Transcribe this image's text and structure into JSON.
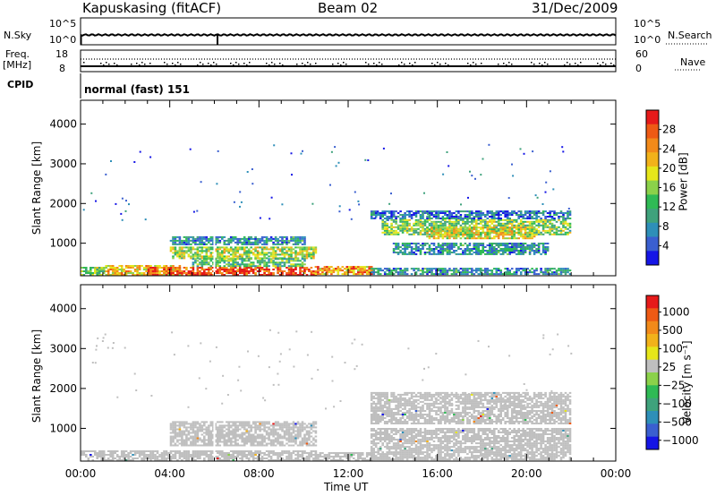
{
  "header": {
    "station": "Kapuskasing (fitACF)",
    "beam": "Beam 02",
    "date": "31/Dec/2009"
  },
  "top_panels": {
    "nsky_label": "N.Sky",
    "nsky_ticks": [
      "10^5",
      "10^0"
    ],
    "nsearch_label": "N.Search",
    "nsearch_ticks": [
      "10^5",
      "10^0"
    ],
    "freq_label": "Freq.",
    "freq_unit": "[MHz]",
    "freq_ticks": [
      "18",
      "8"
    ],
    "nave_label": "Nave",
    "nave_ticks": [
      "60",
      "0"
    ],
    "cpid_label": "CPID",
    "cpid_value": "normal (fast) 151"
  },
  "colors": {
    "power": [
      "#1515e6",
      "#3a5fd0",
      "#2e8fb8",
      "#3fa27c",
      "#2fba55",
      "#8bd14a",
      "#e6e61a",
      "#f2b21a",
      "#f28a1a",
      "#ee5a14",
      "#e61a1a"
    ],
    "velocity": [
      "#1515e6",
      "#3a5fd0",
      "#2e8fb8",
      "#3fa27c",
      "#2fba55",
      "#8bd14a",
      "#bfbfbf",
      "#e6e61a",
      "#f2b21a",
      "#f28a1a",
      "#ee5a14",
      "#e61a1a"
    ]
  },
  "chart_data": [
    {
      "type": "heatmap",
      "name": "power",
      "ylabel": "Slant Range [km]",
      "yticks": [
        "1000",
        "2000",
        "3000",
        "4000"
      ],
      "ylim": [
        180,
        4600
      ],
      "xlim": [
        0,
        24
      ],
      "colorbar_label": "Power [dB]",
      "colorbar_ticks": [
        "4",
        "8",
        "12",
        "16",
        "20",
        "24",
        "28"
      ],
      "regions": [
        {
          "t0": 0.0,
          "t1": 1.0,
          "r0": 180,
          "r1": 400,
          "val": 14
        },
        {
          "t0": 1.0,
          "t1": 4.5,
          "r0": 180,
          "r1": 450,
          "val": 20
        },
        {
          "t0": 3.0,
          "t1": 10.5,
          "r0": 180,
          "r1": 380,
          "val": 27
        },
        {
          "t0": 4.0,
          "t1": 10.5,
          "r0": 600,
          "r1": 900,
          "val": 16
        },
        {
          "t0": 4.0,
          "t1": 10.0,
          "r0": 950,
          "r1": 1150,
          "val": 8
        },
        {
          "t0": 5.0,
          "t1": 10.0,
          "r0": 400,
          "r1": 600,
          "val": 12
        },
        {
          "t0": 10.5,
          "t1": 13.0,
          "r0": 200,
          "r1": 400,
          "val": 22
        },
        {
          "t0": 13.0,
          "t1": 22.0,
          "r0": 200,
          "r1": 350,
          "val": 8
        },
        {
          "t0": 13.5,
          "t1": 22.0,
          "r0": 1200,
          "r1": 1600,
          "val": 14
        },
        {
          "t0": 13.0,
          "t1": 22.0,
          "r0": 1600,
          "r1": 1800,
          "val": 6
        },
        {
          "t0": 14.0,
          "t1": 21.0,
          "r0": 700,
          "r1": 1000,
          "val": 8
        },
        {
          "t0": 15.5,
          "t1": 20.5,
          "r0": 1100,
          "r1": 1400,
          "val": 18
        }
      ]
    },
    {
      "type": "heatmap",
      "name": "velocity",
      "xlabel": "Time UT",
      "ylabel": "Slant Range [km]",
      "yticks": [
        "1000",
        "2000",
        "3000",
        "4000"
      ],
      "xticks": [
        "00:00",
        "04:00",
        "08:00",
        "12:00",
        "16:00",
        "20:00",
        "00:00"
      ],
      "ylim": [
        180,
        4600
      ],
      "xlim": [
        0,
        24
      ],
      "colorbar_label": "Velocity [m s⁻¹]",
      "colorbar_ticks": [
        "1000",
        "500",
        "100",
        "25",
        "−25",
        "−100",
        "−500",
        "−1000"
      ],
      "regions": [
        {
          "t0": 0.0,
          "t1": 10.5,
          "r0": 180,
          "r1": 450,
          "val": 0
        },
        {
          "t0": 4.0,
          "t1": 10.5,
          "r0": 550,
          "r1": 1150,
          "val": 0
        },
        {
          "t0": 10.5,
          "t1": 13.0,
          "r0": 180,
          "r1": 400,
          "val": 0
        },
        {
          "t0": 13.0,
          "t1": 22.0,
          "r0": 200,
          "r1": 1000,
          "val": 0
        },
        {
          "t0": 13.0,
          "t1": 22.0,
          "r0": 1100,
          "r1": 1900,
          "val": 0
        }
      ]
    }
  ]
}
